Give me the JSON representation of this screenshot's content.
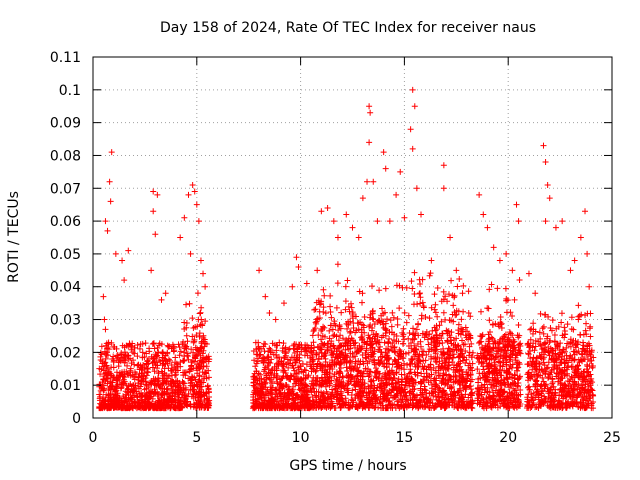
{
  "chart_data": {
    "type": "scatter",
    "title": "Day 158 of 2024, Rate Of TEC Index for receiver naus",
    "xlabel": "GPS time / hours",
    "ylabel": "ROTI / TECUs",
    "xlim": [
      0,
      25
    ],
    "ylim": [
      0,
      0.11
    ],
    "x_ticks": [
      "0",
      "5",
      "10",
      "15",
      "20",
      "25"
    ],
    "y_ticks": [
      "0",
      "0.01",
      "0.02",
      "0.03",
      "0.04",
      "0.05",
      "0.06",
      "0.07",
      "0.08",
      "0.09",
      "0.1",
      "0.11"
    ],
    "grid": true,
    "marker": "+",
    "color": "#ff0000",
    "data_gaps": [
      [
        5.6,
        7.7
      ],
      [
        18.3,
        18.5
      ],
      [
        20.6,
        20.9
      ]
    ],
    "series": [
      {
        "points": [
          [
            0.9,
            0.081
          ],
          [
            0.8,
            0.072
          ],
          [
            0.85,
            0.066
          ],
          [
            0.6,
            0.06
          ],
          [
            0.7,
            0.057
          ],
          [
            1.1,
            0.05
          ],
          [
            1.4,
            0.048
          ],
          [
            1.7,
            0.051
          ],
          [
            1.5,
            0.042
          ],
          [
            0.5,
            0.037
          ],
          [
            0.55,
            0.03
          ],
          [
            0.6,
            0.027
          ],
          [
            2.9,
            0.069
          ],
          [
            3.1,
            0.068
          ],
          [
            2.9,
            0.063
          ],
          [
            3.0,
            0.056
          ],
          [
            2.8,
            0.045
          ],
          [
            3.3,
            0.036
          ],
          [
            3.5,
            0.038
          ],
          [
            4.2,
            0.055
          ],
          [
            4.4,
            0.061
          ],
          [
            4.6,
            0.068
          ],
          [
            4.8,
            0.071
          ],
          [
            4.9,
            0.069
          ],
          [
            5.0,
            0.065
          ],
          [
            5.1,
            0.06
          ],
          [
            4.7,
            0.05
          ],
          [
            5.2,
            0.048
          ],
          [
            5.3,
            0.044
          ],
          [
            5.4,
            0.04
          ],
          [
            8.0,
            0.045
          ],
          [
            8.3,
            0.037
          ],
          [
            8.5,
            0.032
          ],
          [
            8.8,
            0.03
          ],
          [
            9.2,
            0.035
          ],
          [
            9.6,
            0.04
          ],
          [
            9.8,
            0.049
          ],
          [
            9.9,
            0.046
          ],
          [
            10.3,
            0.041
          ],
          [
            10.8,
            0.045
          ],
          [
            11.0,
            0.063
          ],
          [
            11.3,
            0.064
          ],
          [
            11.6,
            0.06
          ],
          [
            11.8,
            0.055
          ],
          [
            12.2,
            0.062
          ],
          [
            12.5,
            0.058
          ],
          [
            12.8,
            0.055
          ],
          [
            13.0,
            0.067
          ],
          [
            13.2,
            0.072
          ],
          [
            13.3,
            0.095
          ],
          [
            13.35,
            0.093
          ],
          [
            13.3,
            0.084
          ],
          [
            13.5,
            0.072
          ],
          [
            13.7,
            0.06
          ],
          [
            14.0,
            0.081
          ],
          [
            14.1,
            0.076
          ],
          [
            14.3,
            0.06
          ],
          [
            14.6,
            0.068
          ],
          [
            14.8,
            0.075
          ],
          [
            15.0,
            0.061
          ],
          [
            15.3,
            0.088
          ],
          [
            15.4,
            0.1
          ],
          [
            15.5,
            0.095
          ],
          [
            15.4,
            0.082
          ],
          [
            15.6,
            0.07
          ],
          [
            15.8,
            0.062
          ],
          [
            16.3,
            0.048
          ],
          [
            16.9,
            0.077
          ],
          [
            16.9,
            0.07
          ],
          [
            17.2,
            0.055
          ],
          [
            17.5,
            0.045
          ],
          [
            17.8,
            0.038
          ],
          [
            18.1,
            0.032
          ],
          [
            18.6,
            0.068
          ],
          [
            18.8,
            0.062
          ],
          [
            19.0,
            0.058
          ],
          [
            19.3,
            0.052
          ],
          [
            19.6,
            0.048
          ],
          [
            19.9,
            0.05
          ],
          [
            20.2,
            0.045
          ],
          [
            20.4,
            0.065
          ],
          [
            20.5,
            0.06
          ],
          [
            21.0,
            0.044
          ],
          [
            21.3,
            0.038
          ],
          [
            21.7,
            0.083
          ],
          [
            21.8,
            0.078
          ],
          [
            21.9,
            0.071
          ],
          [
            22.0,
            0.067
          ],
          [
            21.8,
            0.06
          ],
          [
            22.3,
            0.058
          ],
          [
            22.6,
            0.06
          ],
          [
            23.0,
            0.045
          ],
          [
            23.2,
            0.048
          ],
          [
            23.5,
            0.055
          ],
          [
            23.7,
            0.063
          ],
          [
            23.8,
            0.05
          ],
          [
            23.9,
            0.04
          ]
        ]
      }
    ]
  }
}
